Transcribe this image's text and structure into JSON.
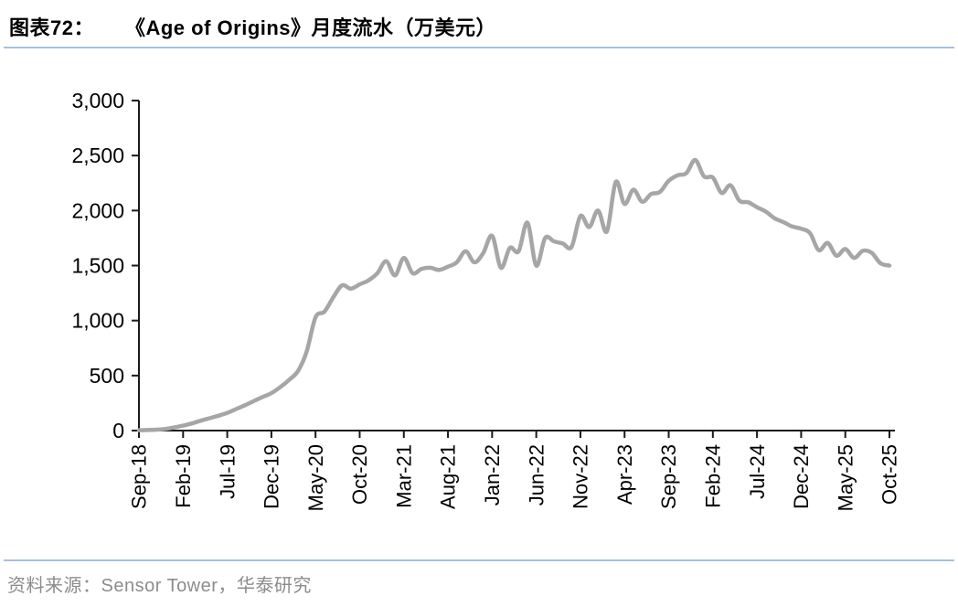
{
  "header": {
    "figure_label": "图表72：",
    "title": "《Age of Origins》月度流水（万美元）"
  },
  "footer": {
    "source": "资料来源：Sensor Tower，华泰研究"
  },
  "chart_data": {
    "type": "line",
    "title": "《Age of Origins》月度流水（万美元）",
    "series_name": "月度流水",
    "unit": "万美元",
    "x": [
      "Sep-18",
      "Oct-18",
      "Nov-18",
      "Dec-18",
      "Jan-19",
      "Feb-19",
      "Mar-19",
      "Apr-19",
      "May-19",
      "Jun-19",
      "Jul-19",
      "Aug-19",
      "Sep-19",
      "Oct-19",
      "Nov-19",
      "Dec-19",
      "Jan-20",
      "Feb-20",
      "Mar-20",
      "Apr-20",
      "May-20",
      "Jun-20",
      "Jul-20",
      "Aug-20",
      "Sep-20",
      "Oct-20",
      "Nov-20",
      "Dec-20",
      "Jan-21",
      "Feb-21",
      "Mar-21",
      "Apr-21",
      "May-21",
      "Jun-21",
      "Jul-21",
      "Aug-21",
      "Sep-21",
      "Oct-21",
      "Nov-21",
      "Dec-21",
      "Jan-22",
      "Feb-22",
      "Mar-22",
      "Apr-22",
      "May-22",
      "Jun-22",
      "Jul-22",
      "Aug-22",
      "Sep-22",
      "Oct-22",
      "Nov-22",
      "Dec-22",
      "Jan-23",
      "Feb-23",
      "Mar-23",
      "Apr-23",
      "May-23",
      "Jun-23",
      "Jul-23",
      "Aug-23",
      "Sep-23",
      "Oct-23",
      "Nov-23",
      "Dec-23",
      "Jan-24",
      "Feb-24",
      "Mar-24",
      "Apr-24",
      "May-24",
      "Jun-24",
      "Jul-24",
      "Aug-24",
      "Sep-24",
      "Oct-24",
      "Nov-24",
      "Dec-24",
      "Jan-25",
      "Feb-25",
      "Mar-25",
      "Apr-25",
      "May-25",
      "Jun-25",
      "Jul-25",
      "Aug-25",
      "Sep-25",
      "Oct-25"
    ],
    "values": [
      3,
      5,
      8,
      15,
      28,
      45,
      65,
      90,
      112,
      135,
      160,
      195,
      230,
      268,
      305,
      340,
      395,
      460,
      540,
      720,
      1030,
      1080,
      1210,
      1320,
      1290,
      1330,
      1365,
      1430,
      1540,
      1410,
      1570,
      1430,
      1470,
      1480,
      1460,
      1490,
      1530,
      1630,
      1530,
      1615,
      1770,
      1480,
      1660,
      1630,
      1890,
      1500,
      1750,
      1720,
      1700,
      1670,
      1950,
      1850,
      2000,
      1810,
      2260,
      2060,
      2190,
      2080,
      2150,
      2170,
      2270,
      2320,
      2340,
      2460,
      2310,
      2300,
      2160,
      2230,
      2090,
      2075,
      2030,
      1990,
      1930,
      1895,
      1855,
      1835,
      1795,
      1640,
      1705,
      1590,
      1650,
      1570,
      1635,
      1615,
      1520,
      1500
    ],
    "x_tick_labels": [
      "Sep-18",
      "Feb-19",
      "Jul-19",
      "Dec-19",
      "May-20",
      "Oct-20",
      "Mar-21",
      "Aug-21",
      "Jan-22",
      "Jun-22",
      "Nov-22",
      "Apr-23",
      "Sep-23",
      "Feb-24",
      "Jul-24",
      "Dec-24",
      "May-25",
      "Oct-25"
    ],
    "x_tick_every": 5,
    "ylim": [
      0,
      3000
    ],
    "y_ticks": [
      0,
      500,
      1000,
      1500,
      2000,
      2500,
      3000
    ],
    "y_tick_labels": [
      "0",
      "500",
      "1,000",
      "1,500",
      "2,000",
      "2,500",
      "3,000"
    ],
    "grid": false,
    "legend": "none",
    "line_color": "#a6a6a6",
    "axis_color": "#1a1a1a",
    "tick_label_color": "#000000",
    "accent_rule_color": "#a6c1dc",
    "source_text_color": "#8c8c8c"
  }
}
